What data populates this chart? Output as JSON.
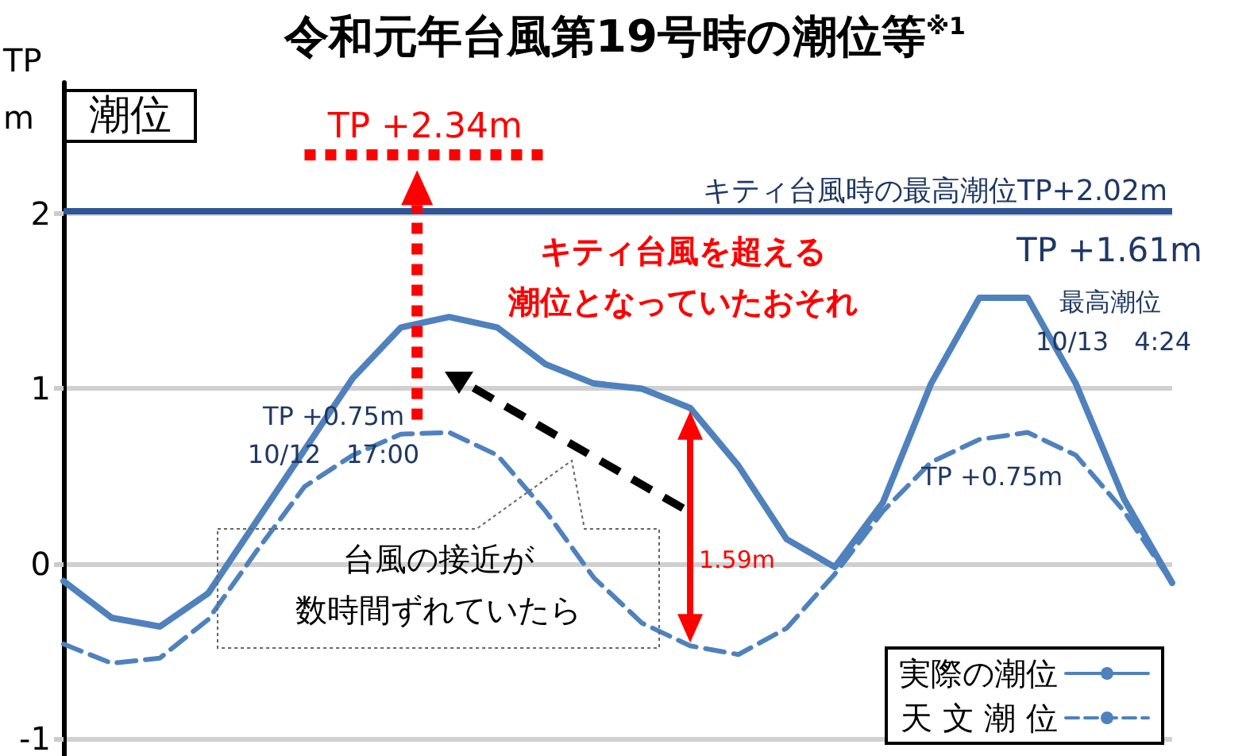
{
  "chart_data": {
    "type": "line",
    "title": "令和元年台風第19号時の潮位等$^{※1}$",
    "ylabel": "TP\nm",
    "categories": [
      null,
      null,
      null,
      null,
      null,
      null,
      null,
      null,
      null,
      null,
      null,
      null,
      null,
      null,
      null,
      null,
      null,
      null,
      null,
      null,
      null,
      null,
      null,
      null
    ],
    "series": [
      {
        "name": "実際の潮位",
        "color": "#4f81bd",
        "line_style": "solid",
        "values": [
          -0.1,
          -0.31,
          -0.36,
          -0.17,
          0.24,
          0.65,
          1.06,
          1.35,
          1.41,
          1.35,
          1.14,
          1.03,
          1.0,
          0.89,
          0.56,
          0.14,
          -0.02,
          0.35,
          1.03,
          1.52,
          1.52,
          1.03,
          0.37,
          -0.11
        ]
      },
      {
        "name": "天 文 潮 位",
        "color": "#4f81bd",
        "line_style": "dashed",
        "values": [
          -0.46,
          -0.57,
          -0.54,
          -0.32,
          0.07,
          0.44,
          0.62,
          0.74,
          0.75,
          0.62,
          0.3,
          -0.08,
          -0.34,
          -0.47,
          -0.52,
          -0.37,
          -0.06,
          0.3,
          0.58,
          0.71,
          0.75,
          0.62,
          0.3,
          -0.11
        ]
      }
    ],
    "ylim": [
      -1.1,
      2.75
    ],
    "yticks": [
      -1,
      0,
      1,
      2
    ],
    "grid": "y",
    "marker": "none",
    "legend": "bottom right",
    "tick_labels": "y",
    "ref_lines": [
      {
        "axis": "y",
        "value": 2.02,
        "label": "キティ台風時の最高潮位TP+2.02m",
        "color": "#2f5597"
      },
      {
        "axis": "y",
        "value": 2.34,
        "label": "TP +2.34m",
        "color": "#ff0000",
        "line_style": "dotted"
      }
    ],
    "annotations": [
      "潮位",
      "キティ台風を超える",
      "潮位となっていたおそれ",
      "TP +1.61m",
      "最高潮位",
      "10/13　4:24",
      "TP +0.75m\n10/12　17:00",
      "TP +0.75m",
      "台風の接近が",
      "数時間ずれていたら",
      "1.59m"
    ]
  }
}
